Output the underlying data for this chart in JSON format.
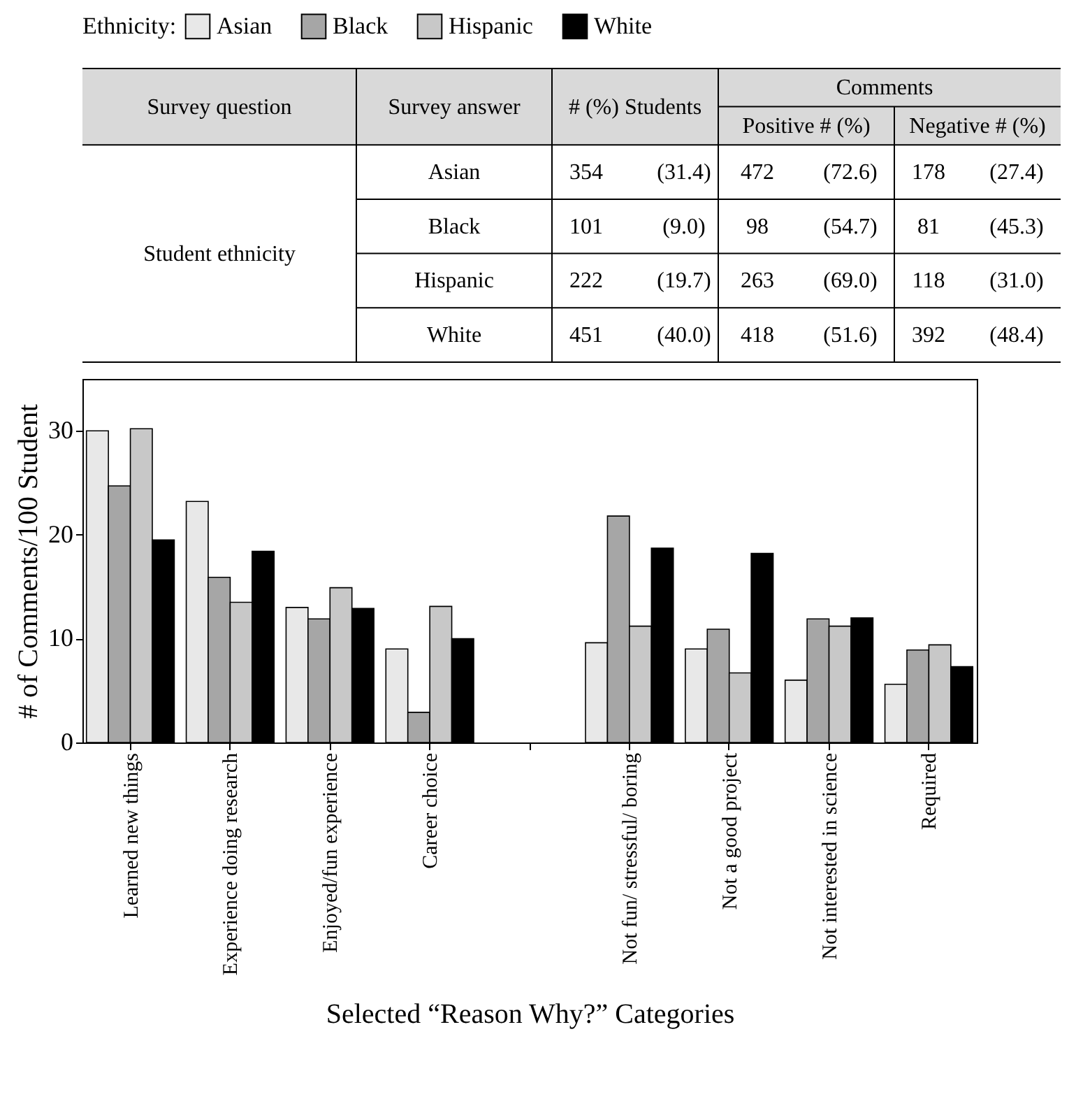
{
  "chart_data": [
    {
      "type": "other",
      "annotations": [
        "Survey question",
        "Survey answer",
        "# (%) Students",
        "Comments",
        "Positive # (%)",
        "Negative # (%)",
        "Student ethnicity",
        "Asian",
        "354",
        "(31.4)",
        "472",
        "(72.6)",
        "178",
        "(27.4)",
        "Black",
        "101",
        "(9.0)",
        "98",
        "(54.7)",
        "81",
        "(45.3)",
        "Hispanic",
        "222",
        "(19.7)",
        "263",
        "(69.0)",
        "118",
        "(31.0)",
        "White",
        "451",
        "(40.0)",
        "418",
        "(51.6)",
        "392",
        "(48.4)"
      ]
    },
    {
      "type": "bar",
      "xlabel": "Selected “Reason Why?” Categories",
      "ylabel": "# of Comments/100 Student",
      "legend_title": "Ethnicity:",
      "categories": [
        "Learned new things",
        "Experience doing research",
        "Enjoyed/fun experience",
        "Career choice",
        null,
        "Not fun/ stressful/ boring",
        "Not a good project",
        "Not interested in science",
        "Required"
      ],
      "series": [
        {
          "name": "Asian",
          "color": "#e8e8e8",
          "values": [
            30,
            23.2,
            13,
            9,
            null,
            9.6,
            9,
            6,
            5.6
          ]
        },
        {
          "name": "Black",
          "color": "#a6a6a6",
          "values": [
            24.7,
            15.9,
            11.9,
            2.9,
            null,
            21.8,
            10.9,
            11.9,
            8.9
          ]
        },
        {
          "name": "Hispanic",
          "color": "#c8c8c8",
          "values": [
            30.2,
            13.5,
            14.9,
            13.1,
            null,
            11.2,
            6.7,
            11.2,
            9.4
          ]
        },
        {
          "name": "White",
          "color": "#000000",
          "values": [
            19.5,
            18.4,
            12.9,
            10,
            null,
            18.7,
            18.2,
            12,
            7.3
          ]
        }
      ],
      "ylim": [
        0,
        35
      ],
      "yticks": [
        0,
        10,
        20,
        30
      ],
      "legend": "top"
    }
  ]
}
